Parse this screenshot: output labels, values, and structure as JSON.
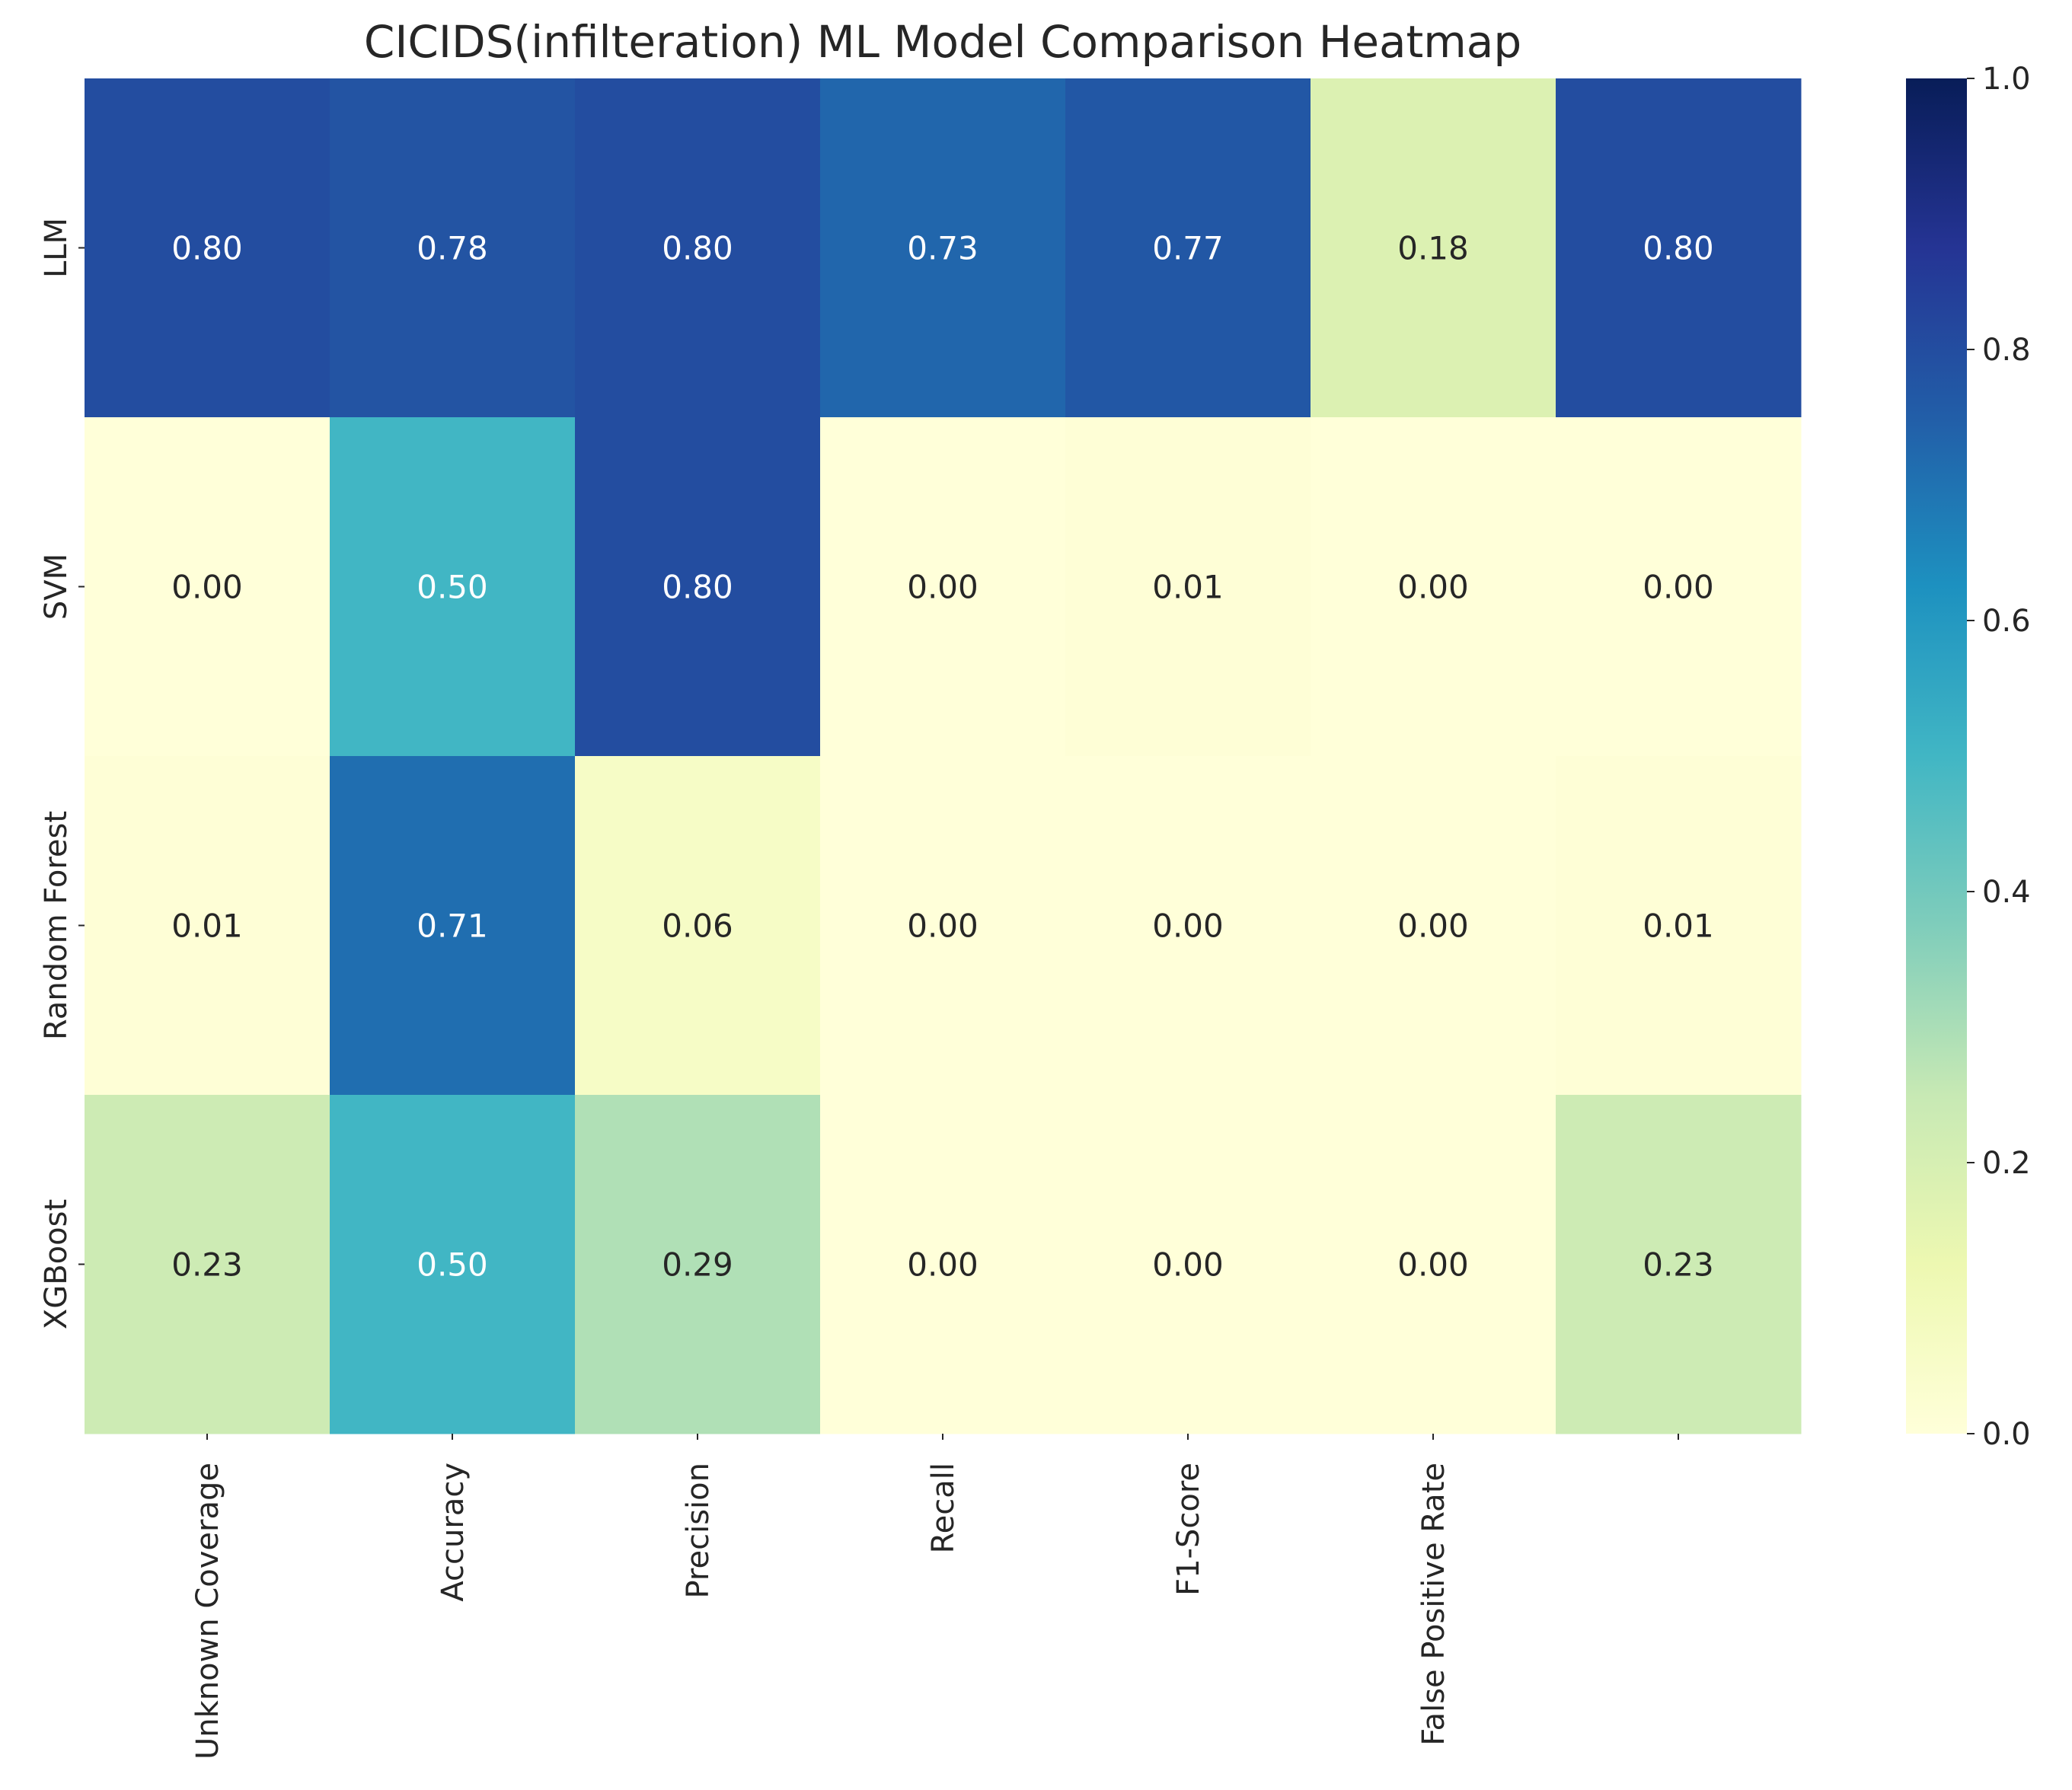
{
  "chart_data": {
    "type": "heatmap",
    "title": "CICIDS(infilteration) ML Model Comparison Heatmap",
    "xlabel": "",
    "ylabel": "",
    "columns": [
      "Unknown Coverage",
      "Accuracy",
      "Precision",
      "Recall",
      "F1-Score",
      "False Positive Rate",
      ""
    ],
    "rows": [
      "LLM",
      "SVM",
      "Random Forest",
      "XGBoost"
    ],
    "values": [
      [
        0.8,
        0.78,
        0.8,
        0.73,
        0.77,
        0.18,
        0.8
      ],
      [
        0.0,
        0.5,
        0.8,
        0.0,
        0.01,
        0.0,
        0.0
      ],
      [
        0.01,
        0.71,
        0.06,
        0.0,
        0.0,
        0.0,
        0.01
      ],
      [
        0.23,
        0.5,
        0.29,
        0.0,
        0.0,
        0.0,
        0.23
      ]
    ],
    "value_format": "0.00",
    "colormap": "YlGnBu",
    "vmin": 0.0,
    "vmax": 1.0,
    "colorbar": {
      "ticks": [
        0.0,
        0.2,
        0.4,
        0.6,
        0.8,
        1.0
      ],
      "tick_labels": [
        "0.0",
        "0.2",
        "0.4",
        "0.6",
        "0.8",
        "1.0"
      ]
    },
    "colors": {
      "text_dark": "#262626",
      "text_light": "#ffffff",
      "colormap_stops": [
        "#ffffd9",
        "#edf8b1",
        "#c7e9b4",
        "#7fcdbb",
        "#41b6c4",
        "#1d91c0",
        "#225ea8",
        "#253494",
        "#081d58"
      ]
    }
  }
}
